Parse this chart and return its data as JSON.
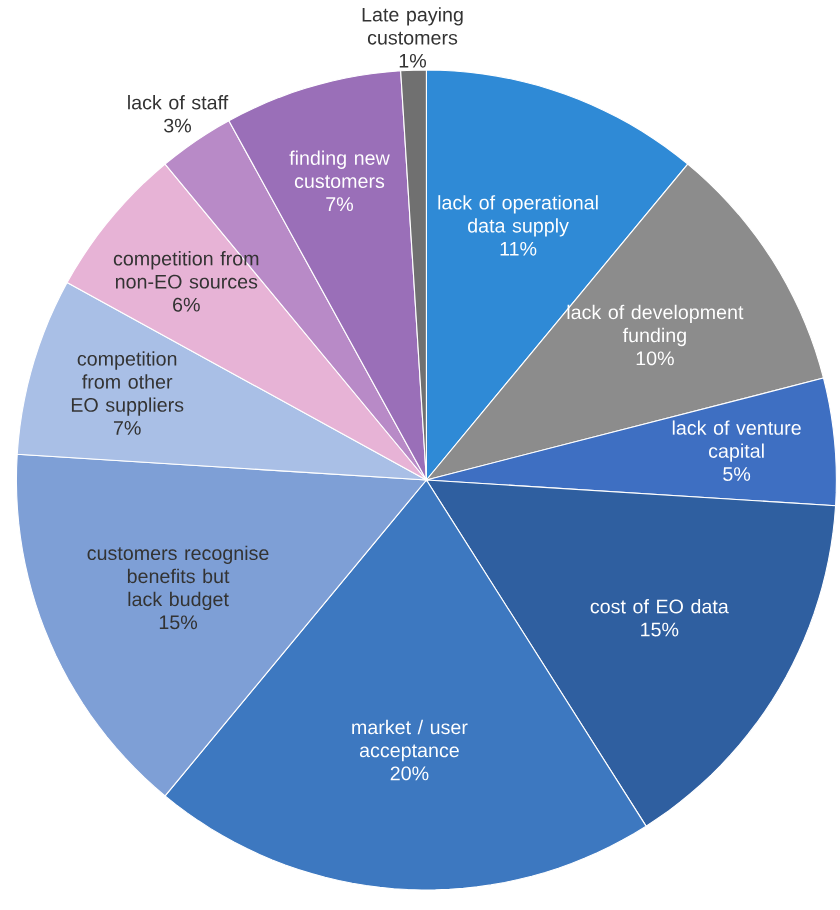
{
  "chart_data": {
    "type": "pie",
    "categories": [
      "lack of operational data supply",
      "lack of development funding",
      "lack of venture capital",
      "cost of EO data",
      "market / user acceptance",
      "customers recognise benefits but lack budget",
      "competition from other EO suppliers",
      "competition from non-EO sources",
      "lack of staff",
      "finding new customers",
      "Late paying customers"
    ],
    "values": [
      11,
      10,
      5,
      15,
      20,
      15,
      7,
      6,
      3,
      7,
      1
    ],
    "value_labels": [
      "11%",
      "10%",
      "5%",
      "15%",
      "20%",
      "15%",
      "7%",
      "6%",
      "3%",
      "7%",
      "1%"
    ],
    "colors": [
      "#2f8ad6",
      "#8c8c8c",
      "#3e6fc2",
      "#2f5fa0",
      "#3d78c0",
      "#7e9fd6",
      "#a9bfe6",
      "#e7b3d6",
      "#b88ac7",
      "#9a6fb8",
      "#707070"
    ]
  }
}
